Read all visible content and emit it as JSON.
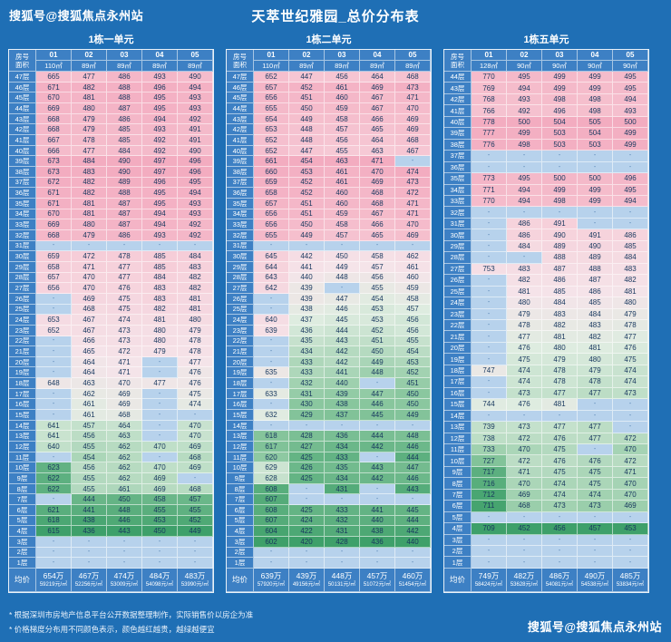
{
  "page": {
    "watermark_top": "搜狐号@搜狐焦点永州站",
    "watermark_bottom": "搜狐号@搜狐焦点永州站",
    "title": "天萃世纪雅园_总价分布表",
    "notes": [
      "* 根据深圳市房地产信息平台公开数据整理制作，实际销售价以房企为准",
      "* 价格梯度分布用不同颜色表示，颜色越红越贵，越绿越便宜"
    ]
  },
  "colors": {
    "background": "#1f6fb5",
    "header_cell": "#3d80c4",
    "empty_cell": "#b7d2ec",
    "cell_text": "#17375e",
    "price_low_green": "#3ea06a",
    "price_high_pink": "#f3acc0"
  },
  "chart_data": [
    {
      "type": "heatmap",
      "title": "1栋一单元",
      "corner_top": "房号",
      "corner_bottom": "面积",
      "floor_suffix": "层",
      "columns": [
        "01",
        "02",
        "03",
        "04",
        "05"
      ],
      "areas": [
        "110㎡",
        "89㎡",
        "89㎡",
        "89㎡",
        "89㎡"
      ],
      "floors": [
        47,
        46,
        45,
        44,
        43,
        42,
        41,
        40,
        39,
        38,
        37,
        36,
        35,
        34,
        33,
        32,
        31,
        30,
        29,
        28,
        27,
        26,
        25,
        24,
        23,
        22,
        21,
        20,
        19,
        18,
        17,
        16,
        15,
        14,
        13,
        12,
        11,
        10,
        9,
        8,
        7,
        6,
        5,
        4,
        3,
        2,
        1
      ],
      "values": [
        [
          665,
          477,
          486,
          493,
          490
        ],
        [
          671,
          482,
          488,
          496,
          494
        ],
        [
          670,
          481,
          488,
          495,
          493
        ],
        [
          669,
          480,
          487,
          495,
          493
        ],
        [
          668,
          479,
          486,
          494,
          492
        ],
        [
          668,
          479,
          485,
          493,
          491
        ],
        [
          667,
          478,
          485,
          492,
          491
        ],
        [
          666,
          477,
          484,
          492,
          490
        ],
        [
          673,
          484,
          490,
          497,
          496
        ],
        [
          673,
          483,
          490,
          497,
          496
        ],
        [
          672,
          482,
          489,
          496,
          495
        ],
        [
          671,
          482,
          488,
          495,
          494
        ],
        [
          671,
          481,
          487,
          495,
          493
        ],
        [
          670,
          481,
          487,
          494,
          493
        ],
        [
          669,
          480,
          487,
          494,
          492
        ],
        [
          668,
          479,
          486,
          493,
          492
        ],
        [
          "-",
          "-",
          "-",
          "-",
          "-"
        ],
        [
          659,
          472,
          478,
          485,
          484
        ],
        [
          658,
          471,
          477,
          485,
          483
        ],
        [
          657,
          470,
          477,
          484,
          482
        ],
        [
          656,
          470,
          476,
          483,
          482
        ],
        [
          "-",
          469,
          475,
          483,
          481
        ],
        [
          "-",
          468,
          475,
          482,
          481
        ],
        [
          653,
          467,
          474,
          481,
          480
        ],
        [
          652,
          467,
          473,
          480,
          479
        ],
        [
          "-",
          466,
          473,
          480,
          478
        ],
        [
          "-",
          465,
          472,
          479,
          478
        ],
        [
          "-",
          464,
          471,
          "-",
          477
        ],
        [
          "-",
          464,
          471,
          "-",
          476
        ],
        [
          648,
          463,
          470,
          477,
          476
        ],
        [
          "-",
          462,
          469,
          "-",
          475
        ],
        [
          "-",
          461,
          469,
          "-",
          474
        ],
        [
          "-",
          461,
          468,
          "-",
          "-"
        ],
        [
          641,
          457,
          464,
          "-",
          470
        ],
        [
          641,
          456,
          463,
          "-",
          470
        ],
        [
          640,
          455,
          462,
          470,
          469
        ],
        [
          "-",
          454,
          462,
          "-",
          468
        ],
        [
          623,
          456,
          462,
          470,
          469
        ],
        [
          622,
          455,
          462,
          469,
          "-"
        ],
        [
          622,
          455,
          461,
          469,
          468
        ],
        [
          "-",
          444,
          450,
          458,
          457
        ],
        [
          621,
          441,
          448,
          455,
          455
        ],
        [
          618,
          438,
          446,
          453,
          452
        ],
        [
          615,
          436,
          443,
          450,
          449
        ],
        [
          "-",
          "-",
          "-",
          "-",
          "-"
        ],
        [
          "-",
          "-",
          "-",
          "-",
          "-"
        ],
        [
          "-",
          "-",
          "-",
          "-",
          "-"
        ]
      ],
      "avg": {
        "label": "均价",
        "prices": [
          "654万",
          "467万",
          "474万",
          "484万",
          "483万"
        ],
        "unit_prices": [
          "59219元/㎡",
          "52256元/㎡",
          "53009元/㎡",
          "54098元/㎡",
          "53990元/㎡"
        ]
      }
    },
    {
      "type": "heatmap",
      "title": "1栋二单元",
      "corner_top": "房号",
      "corner_bottom": "面积",
      "floor_suffix": "层",
      "columns": [
        "01",
        "02",
        "03",
        "04",
        "05"
      ],
      "areas": [
        "110㎡",
        "89㎡",
        "89㎡",
        "89㎡",
        "89㎡"
      ],
      "floors": [
        47,
        46,
        45,
        44,
        43,
        42,
        41,
        40,
        39,
        38,
        37,
        36,
        35,
        34,
        33,
        32,
        31,
        30,
        29,
        28,
        27,
        26,
        25,
        24,
        23,
        22,
        21,
        20,
        19,
        18,
        17,
        16,
        15,
        14,
        13,
        12,
        11,
        10,
        9,
        8,
        7,
        6,
        5,
        4,
        3,
        2,
        1
      ],
      "values": [
        [
          652,
          447,
          456,
          464,
          468
        ],
        [
          657,
          452,
          461,
          469,
          473
        ],
        [
          656,
          451,
          460,
          467,
          471
        ],
        [
          655,
          450,
          459,
          467,
          470
        ],
        [
          654,
          449,
          458,
          466,
          469
        ],
        [
          653,
          448,
          457,
          465,
          469
        ],
        [
          652,
          448,
          456,
          464,
          468
        ],
        [
          652,
          447,
          455,
          463,
          467
        ],
        [
          661,
          454,
          463,
          471,
          "-"
        ],
        [
          660,
          453,
          461,
          470,
          474
        ],
        [
          659,
          452,
          461,
          469,
          473
        ],
        [
          658,
          452,
          460,
          468,
          472
        ],
        [
          657,
          451,
          460,
          468,
          471
        ],
        [
          656,
          451,
          459,
          467,
          471
        ],
        [
          656,
          450,
          458,
          466,
          470
        ],
        [
          655,
          449,
          457,
          465,
          469
        ],
        [
          "-",
          "-",
          "-",
          "-",
          "-"
        ],
        [
          645,
          442,
          450,
          458,
          462
        ],
        [
          644,
          441,
          449,
          457,
          461
        ],
        [
          643,
          440,
          448,
          456,
          460
        ],
        [
          642,
          439,
          "-",
          455,
          459
        ],
        [
          "-",
          439,
          447,
          454,
          458
        ],
        [
          "-",
          438,
          446,
          453,
          457
        ],
        [
          640,
          437,
          445,
          453,
          456
        ],
        [
          639,
          436,
          444,
          452,
          456
        ],
        [
          "-",
          435,
          443,
          451,
          455
        ],
        [
          "-",
          434,
          442,
          450,
          454
        ],
        [
          "-",
          433,
          442,
          449,
          453
        ],
        [
          635,
          433,
          441,
          448,
          452
        ],
        [
          "-",
          432,
          440,
          "-",
          451
        ],
        [
          633,
          431,
          439,
          447,
          450
        ],
        [
          "-",
          430,
          438,
          446,
          450
        ],
        [
          632,
          429,
          437,
          445,
          449
        ],
        [
          "-",
          "-",
          "-",
          "-",
          "-"
        ],
        [
          618,
          428,
          436,
          444,
          448
        ],
        [
          617,
          427,
          434,
          442,
          446
        ],
        [
          620,
          425,
          433,
          "-",
          444
        ],
        [
          629,
          426,
          435,
          443,
          447
        ],
        [
          628,
          425,
          434,
          442,
          446
        ],
        [
          608,
          "-",
          431,
          "-",
          443
        ],
        [
          607,
          "-",
          "-",
          "-",
          "-"
        ],
        [
          608,
          425,
          433,
          441,
          445
        ],
        [
          607,
          424,
          432,
          440,
          444
        ],
        [
          604,
          422,
          431,
          438,
          442
        ],
        [
          602,
          420,
          428,
          436,
          440
        ],
        [
          "-",
          "-",
          "-",
          "-",
          "-"
        ],
        [
          "-",
          "-",
          "-",
          "-",
          "-"
        ]
      ],
      "avg": {
        "label": "均价",
        "prices": [
          "639万",
          "439万",
          "448万",
          "457万",
          "460万"
        ],
        "unit_prices": [
          "57920元/㎡",
          "49156元/㎡",
          "50131元/㎡",
          "51072元/㎡",
          "51454元/㎡"
        ]
      }
    },
    {
      "type": "heatmap",
      "title": "1栋五单元",
      "corner_top": "房号",
      "corner_bottom": "面积",
      "floor_suffix": "层",
      "columns": [
        "01",
        "02",
        "03",
        "04",
        "05"
      ],
      "areas": [
        "128㎡",
        "90㎡",
        "90㎡",
        "90㎡",
        "90㎡"
      ],
      "floors": [
        44,
        43,
        42,
        41,
        40,
        39,
        38,
        37,
        36,
        35,
        34,
        33,
        32,
        31,
        30,
        29,
        28,
        27,
        26,
        25,
        24,
        23,
        22,
        21,
        20,
        19,
        18,
        17,
        16,
        15,
        14,
        13,
        12,
        11,
        10,
        9,
        8,
        7,
        6,
        5,
        4,
        3,
        2,
        1
      ],
      "values": [
        [
          770,
          495,
          499,
          499,
          495
        ],
        [
          769,
          494,
          499,
          499,
          495
        ],
        [
          768,
          493,
          498,
          498,
          494
        ],
        [
          766,
          492,
          496,
          498,
          493
        ],
        [
          778,
          500,
          504,
          505,
          500
        ],
        [
          777,
          499,
          503,
          504,
          499
        ],
        [
          776,
          498,
          503,
          503,
          499
        ],
        [
          "-",
          "-",
          "-",
          "-",
          "-"
        ],
        [
          "-",
          "-",
          "-",
          "-",
          "-"
        ],
        [
          773,
          495,
          500,
          500,
          496
        ],
        [
          771,
          494,
          499,
          499,
          495
        ],
        [
          770,
          494,
          498,
          499,
          494
        ],
        [
          "-",
          "-",
          "-",
          "-",
          "-"
        ],
        [
          "-",
          486,
          491,
          "-",
          "-"
        ],
        [
          "-",
          486,
          490,
          491,
          486
        ],
        [
          "-",
          484,
          489,
          490,
          485
        ],
        [
          "-",
          "-",
          488,
          489,
          484
        ],
        [
          753,
          483,
          487,
          488,
          483
        ],
        [
          "-",
          482,
          486,
          487,
          482
        ],
        [
          "-",
          481,
          485,
          486,
          481
        ],
        [
          "-",
          480,
          484,
          485,
          480
        ],
        [
          "-",
          479,
          483,
          484,
          479
        ],
        [
          "-",
          478,
          482,
          483,
          478
        ],
        [
          "-",
          477,
          481,
          482,
          477
        ],
        [
          "-",
          476,
          480,
          481,
          476
        ],
        [
          "-",
          475,
          479,
          480,
          475
        ],
        [
          747,
          474,
          478,
          479,
          474
        ],
        [
          "-",
          474,
          478,
          478,
          474
        ],
        [
          "-",
          473,
          477,
          477,
          473
        ],
        [
          744,
          476,
          481,
          "-",
          "-"
        ],
        [
          "-",
          "-",
          "-",
          "-",
          "-"
        ],
        [
          739,
          473,
          477,
          477,
          "-"
        ],
        [
          738,
          472,
          476,
          477,
          472
        ],
        [
          733,
          470,
          475,
          "-",
          470
        ],
        [
          727,
          472,
          476,
          476,
          472
        ],
        [
          717,
          471,
          475,
          475,
          471
        ],
        [
          716,
          470,
          474,
          475,
          470
        ],
        [
          712,
          469,
          474,
          474,
          470
        ],
        [
          711,
          468,
          473,
          473,
          469
        ],
        [
          "-",
          "-",
          "-",
          "-",
          "-"
        ],
        [
          709,
          452,
          456,
          457,
          453
        ],
        [
          "-",
          "-",
          "-",
          "-",
          "-"
        ],
        [
          "-",
          "-",
          "-",
          "-",
          "-"
        ],
        [
          "-",
          "-",
          "-",
          "-",
          "-"
        ]
      ],
      "avg": {
        "label": "均价",
        "prices": [
          "749万",
          "482万",
          "486万",
          "490万",
          "485万"
        ],
        "unit_prices": [
          "58424元/㎡",
          "53628元/㎡",
          "54081元/㎡",
          "54538元/㎡",
          "53834元/㎡"
        ]
      }
    }
  ]
}
